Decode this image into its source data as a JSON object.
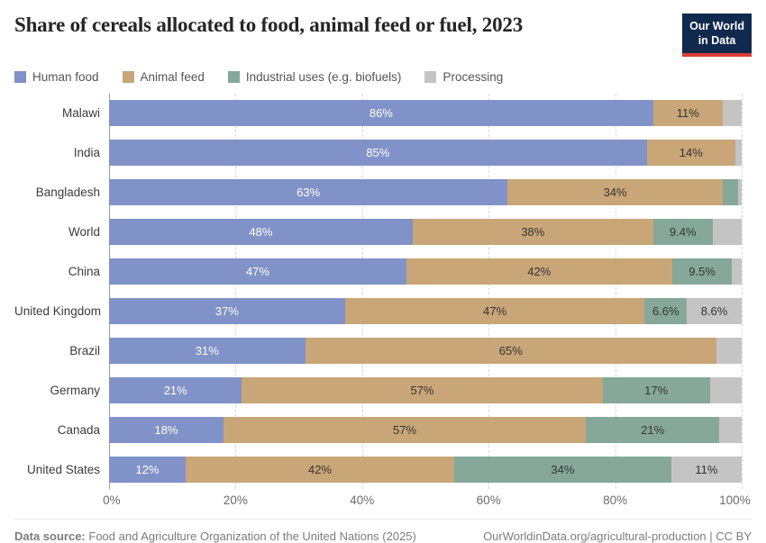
{
  "header": {
    "title": "Share of cereals allocated to food, animal feed or fuel, 2023",
    "logo": {
      "line1": "Our World",
      "line2": "in Data",
      "bg_color": "#10294e",
      "accent_color": "#dc3d32"
    }
  },
  "legend": {
    "items": [
      {
        "key": "human_food",
        "label": "Human food"
      },
      {
        "key": "animal_feed",
        "label": "Animal feed"
      },
      {
        "key": "industrial",
        "label": "Industrial uses (e.g. biofuels)"
      },
      {
        "key": "processing",
        "label": "Processing"
      }
    ]
  },
  "chart_data": {
    "type": "bar",
    "stacked": true,
    "orientation": "horizontal",
    "title": "Share of cereals allocated to food, animal feed or fuel, 2023",
    "series_names": [
      "Human food",
      "Animal feed",
      "Industrial uses (e.g. biofuels)",
      "Processing"
    ],
    "colors": {
      "human_food": "#8092c7",
      "animal_feed": "#c8a677",
      "industrial": "#85a89a",
      "processing": "#c4c4c4"
    },
    "categories": [
      "Malawi",
      "India",
      "Bangladesh",
      "World",
      "China",
      "United Kingdom",
      "Brazil",
      "Germany",
      "Canada",
      "United States"
    ],
    "rows": [
      {
        "country": "Malawi",
        "segments": [
          {
            "series": "human_food",
            "value": 86,
            "label": "86%"
          },
          {
            "series": "animal_feed",
            "value": 11,
            "label": "11%"
          },
          {
            "series": "processing",
            "value": 3,
            "label": ""
          }
        ]
      },
      {
        "country": "India",
        "segments": [
          {
            "series": "human_food",
            "value": 85,
            "label": "85%"
          },
          {
            "series": "animal_feed",
            "value": 14,
            "label": "14%"
          },
          {
            "series": "processing",
            "value": 1,
            "label": ""
          }
        ]
      },
      {
        "country": "Bangladesh",
        "segments": [
          {
            "series": "human_food",
            "value": 63,
            "label": "63%"
          },
          {
            "series": "animal_feed",
            "value": 34,
            "label": "34%"
          },
          {
            "series": "industrial",
            "value": 2.5,
            "label": ""
          },
          {
            "series": "processing",
            "value": 0.5,
            "label": ""
          }
        ]
      },
      {
        "country": "World",
        "segments": [
          {
            "series": "human_food",
            "value": 48,
            "label": "48%"
          },
          {
            "series": "animal_feed",
            "value": 38,
            "label": "38%"
          },
          {
            "series": "industrial",
            "value": 9.4,
            "label": "9.4%"
          },
          {
            "series": "processing",
            "value": 4.6,
            "label": ""
          }
        ]
      },
      {
        "country": "China",
        "segments": [
          {
            "series": "human_food",
            "value": 47,
            "label": "47%"
          },
          {
            "series": "animal_feed",
            "value": 42,
            "label": "42%"
          },
          {
            "series": "industrial",
            "value": 9.5,
            "label": "9.5%"
          },
          {
            "series": "processing",
            "value": 1.5,
            "label": ""
          }
        ]
      },
      {
        "country": "United Kingdom",
        "segments": [
          {
            "series": "human_food",
            "value": 37,
            "label": "37%"
          },
          {
            "series": "animal_feed",
            "value": 47,
            "label": "47%"
          },
          {
            "series": "industrial",
            "value": 6.6,
            "label": "6.6%"
          },
          {
            "series": "processing",
            "value": 8.6,
            "label": "8.6%"
          }
        ]
      },
      {
        "country": "Brazil",
        "segments": [
          {
            "series": "human_food",
            "value": 31,
            "label": "31%"
          },
          {
            "series": "animal_feed",
            "value": 65,
            "label": "65%"
          },
          {
            "series": "processing",
            "value": 4,
            "label": ""
          }
        ]
      },
      {
        "country": "Germany",
        "segments": [
          {
            "series": "human_food",
            "value": 21,
            "label": "21%"
          },
          {
            "series": "animal_feed",
            "value": 57,
            "label": "57%"
          },
          {
            "series": "industrial",
            "value": 17,
            "label": "17%"
          },
          {
            "series": "processing",
            "value": 5,
            "label": ""
          }
        ]
      },
      {
        "country": "Canada",
        "segments": [
          {
            "series": "human_food",
            "value": 18,
            "label": "18%"
          },
          {
            "series": "animal_feed",
            "value": 57,
            "label": "57%"
          },
          {
            "series": "industrial",
            "value": 21,
            "label": "21%"
          },
          {
            "series": "processing",
            "value": 3.5,
            "label": ""
          }
        ]
      },
      {
        "country": "United States",
        "segments": [
          {
            "series": "human_food",
            "value": 12,
            "label": "12%"
          },
          {
            "series": "animal_feed",
            "value": 42,
            "label": "42%"
          },
          {
            "series": "industrial",
            "value": 34,
            "label": "34%"
          },
          {
            "series": "processing",
            "value": 11,
            "label": "11%"
          }
        ]
      }
    ],
    "x_ticks": [
      "0%",
      "20%",
      "40%",
      "60%",
      "80%",
      "100%"
    ],
    "xlim": [
      0,
      100
    ],
    "grid": "vertical dashed lines every 20%",
    "legend_position": "top"
  },
  "footer": {
    "source_label": "Data source:",
    "source_text": "Food and Agriculture Organization of the United Nations (2025)",
    "link_text": "OurWorldinData.org/agricultural-production | CC BY"
  }
}
